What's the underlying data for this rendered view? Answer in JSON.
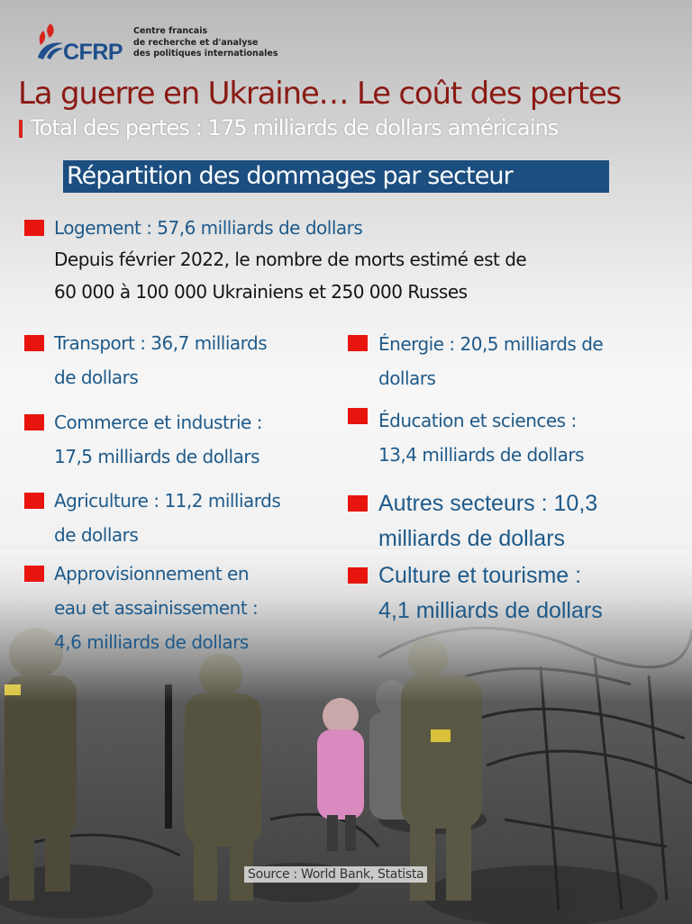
{
  "logo": {
    "brand": "CFRP",
    "subtitle_lines": [
      "Centre francais",
      "de recherche et d'analyse",
      "des politiques internationales"
    ]
  },
  "title": "La guerre en Ukraine… Le coût des pertes",
  "subtitle": "Total des pertes : 175 milliards de dollars américains",
  "section_title": "Répartition des dommages par secteur",
  "housing": {
    "label": "Logement : 57,6 milliards de dollars",
    "deaths_lines": [
      "Depuis février 2022, le nombre de morts estimé est de",
      "60 000 à 100 000 Ukrainiens et 250 000 Russes"
    ]
  },
  "left_items": [
    {
      "lines": [
        "Transport : 36,7 milliards",
        "de dollars"
      ]
    },
    {
      "lines": [
        "Commerce et industrie :",
        "17,5 milliards de dollars"
      ]
    },
    {
      "lines": [
        "Agriculture : 11,2 milliards",
        "de dollars"
      ]
    },
    {
      "lines": [
        "Approvisionnement en",
        "eau et assainissement :",
        "4,6 milliards de dollars"
      ]
    }
  ],
  "right_items": [
    {
      "lines": [
        "Énergie : 20,5 milliards de",
        "dollars"
      ]
    },
    {
      "lines": [
        "Éducation et sciences :",
        "13,4 milliards de dollars"
      ]
    },
    {
      "lines": [
        "Autres secteurs : 10,3",
        "milliards de dollars"
      ]
    },
    {
      "lines": [
        "Culture et tourisme :",
        "4,1 milliards de dollars"
      ]
    }
  ],
  "source": "Source : World Bank, Statista",
  "colors": {
    "accent_red": "#e8150f",
    "title_red": "#8a1a14",
    "banner_blue": "#1c4e80",
    "item_blue": "#1e5a8a"
  },
  "icons": {
    "logo": "flame-icon",
    "bullet": "red-square-bullet"
  }
}
